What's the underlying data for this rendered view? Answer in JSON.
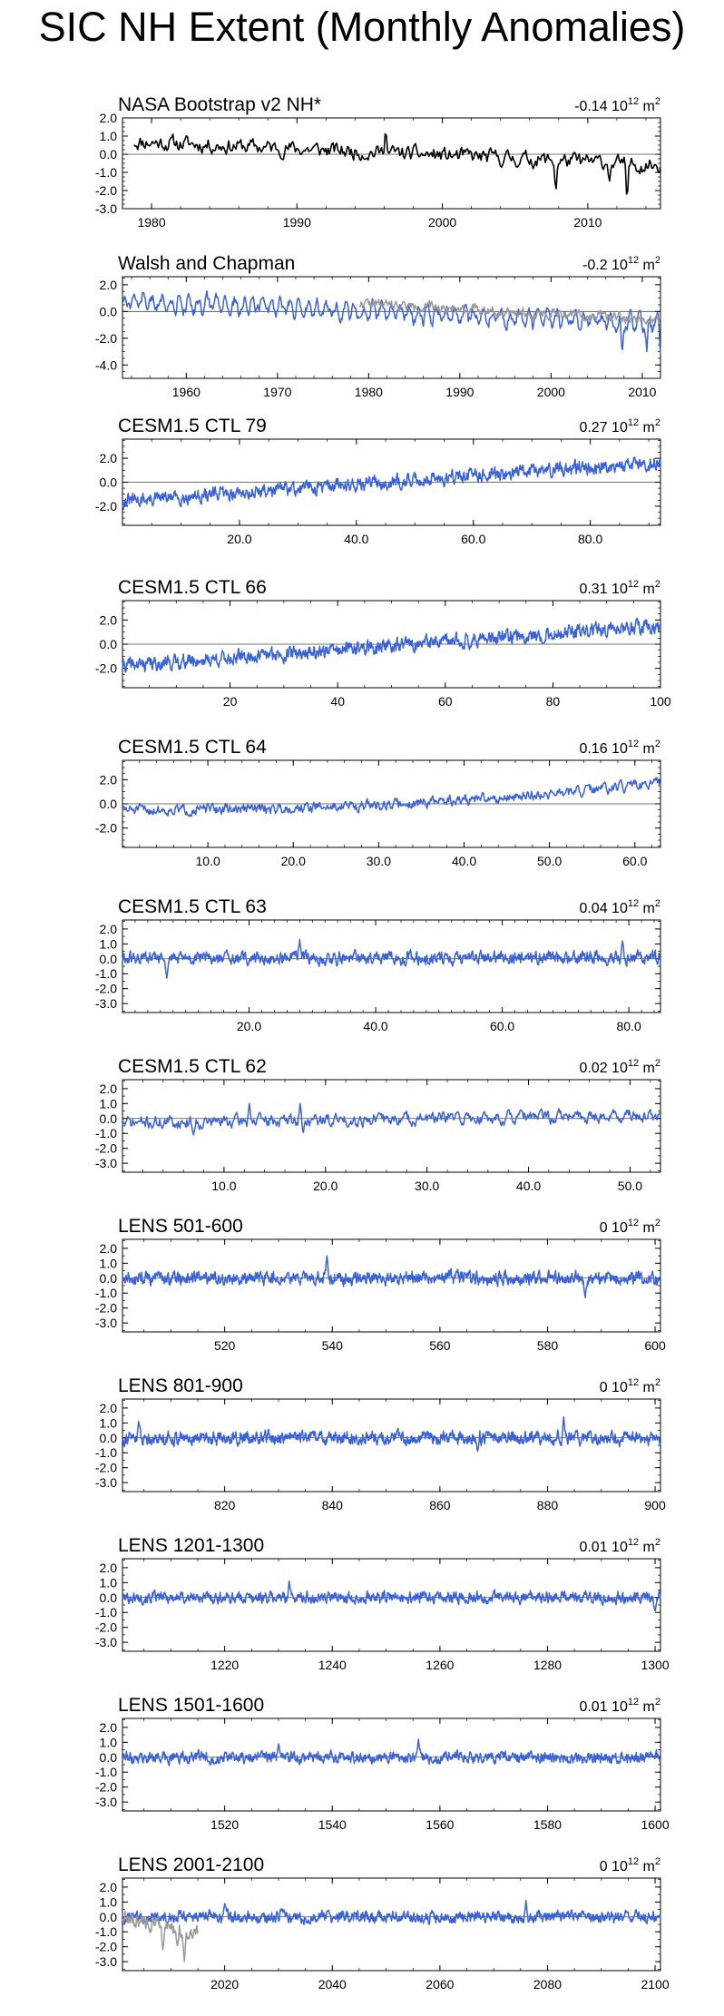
{
  "title": "SIC NH Extent (Monthly Anomalies)",
  "colors": {
    "model": "#3B63D8",
    "obs": "#000000",
    "obs_overlay": "#999999",
    "axis": "#000000"
  },
  "chart_data": [
    {
      "type": "line",
      "title": "NASA Bootstrap v2 NH*",
      "value": "-0.14",
      "unit_base": "10",
      "unit_exp": "12",
      "unit_suffix": " m",
      "unit_exp2": "2",
      "xlim": [
        1978,
        2015
      ],
      "ylim": [
        -3.0,
        2.0
      ],
      "yticks": [
        "2.0",
        "1.0",
        "0.0",
        "-1.0",
        "-2.0",
        "-3.0"
      ],
      "ytick_values": [
        2,
        1,
        0,
        -1,
        -2,
        -3
      ],
      "xticks": [
        "1980",
        "1990",
        "2000",
        "2010"
      ],
      "xtick_values": [
        1980,
        1990,
        2000,
        2010
      ],
      "series": [
        {
          "style": "obs",
          "x_start": 1978.8,
          "x_end": 2015,
          "trend": [
            0.7,
            -0.6
          ],
          "noise": 0.35,
          "seed": 11,
          "spikes": [
            [
              1996.1,
              1.6
            ],
            [
              2007.8,
              -2.2
            ],
            [
              2012.7,
              -2.9
            ],
            [
              2011.5,
              -1.5
            ]
          ]
        }
      ]
    },
    {
      "type": "line",
      "title": "Walsh and Chapman",
      "value": "-0.2",
      "unit_base": "10",
      "unit_exp": "12",
      "unit_suffix": " m",
      "unit_exp2": "2",
      "xlim": [
        1953,
        2012
      ],
      "ylim": [
        -5.0,
        2.6
      ],
      "yticks": [
        "2.0",
        "0.0",
        "-2.0",
        "-4.0"
      ],
      "ytick_values": [
        2,
        0,
        -2,
        -4
      ],
      "xticks": [
        "1960",
        "1970",
        "1980",
        "1990",
        "2000",
        "2010"
      ],
      "xtick_values": [
        1960,
        1970,
        1980,
        1990,
        2000,
        2010
      ],
      "series": [
        {
          "style": "model",
          "x_start": 1953,
          "x_end": 2012,
          "trend": [
            0.8,
            -0.9
          ],
          "noise": 0.35,
          "seasonal": 1.0,
          "seed": 21,
          "spikes": [
            [
              2007.8,
              -3.2
            ],
            [
              2010.5,
              -3.0
            ],
            [
              2012,
              -3.3
            ]
          ]
        },
        {
          "style": "obs_overlay",
          "x_start": 1979,
          "x_end": 2012,
          "trend": [
            0.6,
            -0.6
          ],
          "noise": 0.3,
          "seed": 22
        }
      ]
    },
    {
      "type": "line",
      "title": "CESM1.5 CTL 79",
      "value": "0.27",
      "unit_base": "10",
      "unit_exp": "12",
      "unit_suffix": " m",
      "unit_exp2": "2",
      "xlim": [
        0,
        92
      ],
      "ylim": [
        -3.6,
        3.6
      ],
      "yticks": [
        "2.0",
        "0.0",
        "-2.0"
      ],
      "ytick_values": [
        2,
        0,
        -2
      ],
      "xticks": [
        "20.0",
        "40.0",
        "60.0",
        "80.0"
      ],
      "xtick_values": [
        20,
        40,
        60,
        80
      ],
      "series": [
        {
          "style": "model",
          "x_start": 0,
          "x_end": 92,
          "trend": [
            -1.6,
            1.7
          ],
          "noise": 0.45,
          "seed": 31
        }
      ]
    },
    {
      "type": "line",
      "title": "CESM1.5 CTL 66",
      "value": "0.31",
      "unit_base": "10",
      "unit_exp": "12",
      "unit_suffix": " m",
      "unit_exp2": "2",
      "xlim": [
        0,
        100
      ],
      "ylim": [
        -3.6,
        3.6
      ],
      "yticks": [
        "2.0",
        "0.0",
        "-2.0"
      ],
      "ytick_values": [
        2,
        0,
        -2
      ],
      "xticks": [
        "20",
        "40",
        "60",
        "80",
        "100"
      ],
      "xtick_values": [
        20,
        40,
        60,
        80,
        100
      ],
      "series": [
        {
          "style": "model",
          "x_start": 0,
          "x_end": 100,
          "trend": [
            -1.8,
            1.5
          ],
          "noise": 0.45,
          "seed": 41
        }
      ]
    },
    {
      "type": "line",
      "title": "CESM1.5 CTL 64",
      "value": "0.16",
      "unit_base": "10",
      "unit_exp": "12",
      "unit_suffix": " m",
      "unit_exp2": "2",
      "xlim": [
        0,
        63
      ],
      "ylim": [
        -3.6,
        3.6
      ],
      "yticks": [
        "2.0",
        "0.0",
        "-2.0"
      ],
      "ytick_values": [
        2,
        0,
        -2
      ],
      "xticks": [
        "10.0",
        "20.0",
        "30.0",
        "40.0",
        "50.0",
        "60.0"
      ],
      "xtick_values": [
        10,
        20,
        30,
        40,
        50,
        60
      ],
      "series": [
        {
          "style": "model",
          "x_start": 0,
          "x_end": 63,
          "trend": [
            -0.5,
            1.7
          ],
          "noise": 0.35,
          "seed": 51,
          "curve": 2.2
        }
      ]
    },
    {
      "type": "line",
      "title": "CESM1.5 CTL 63",
      "value": "0.04",
      "unit_base": "10",
      "unit_exp": "12",
      "unit_suffix": " m",
      "unit_exp2": "2",
      "xlim": [
        0,
        85
      ],
      "ylim": [
        -3.6,
        2.6
      ],
      "yticks": [
        "2.0",
        "1.0",
        "0.0",
        "-1.0",
        "-2.0",
        "-3.0"
      ],
      "ytick_values": [
        2,
        1,
        0,
        -1,
        -2,
        -3
      ],
      "xticks": [
        "20.0",
        "40.0",
        "60.0",
        "80.0"
      ],
      "xtick_values": [
        20,
        40,
        60,
        80
      ],
      "series": [
        {
          "style": "model",
          "x_start": 0,
          "x_end": 85,
          "trend": [
            0.0,
            0.1
          ],
          "noise": 0.35,
          "seed": 61,
          "spikes": [
            [
              28,
              1.3
            ],
            [
              7,
              -1.3
            ],
            [
              79,
              1.2
            ]
          ]
        }
      ]
    },
    {
      "type": "line",
      "title": "CESM1.5 CTL 62",
      "value": "0.02",
      "unit_base": "10",
      "unit_exp": "12",
      "unit_suffix": " m",
      "unit_exp2": "2",
      "xlim": [
        0,
        53
      ],
      "ylim": [
        -3.6,
        2.6
      ],
      "yticks": [
        "2.0",
        "1.0",
        "0.0",
        "-1.0",
        "-2.0",
        "-3.0"
      ],
      "ytick_values": [
        2,
        1,
        0,
        -1,
        -2,
        -3
      ],
      "xticks": [
        "10.0",
        "20.0",
        "30.0",
        "40.0",
        "50.0"
      ],
      "xtick_values": [
        10,
        20,
        30,
        40,
        50
      ],
      "series": [
        {
          "style": "model",
          "x_start": 0,
          "x_end": 53,
          "trend": [
            -0.3,
            0.2
          ],
          "noise": 0.35,
          "seed": 71,
          "spikes": [
            [
              12.5,
              1.0
            ],
            [
              17.5,
              1.0
            ],
            [
              7,
              -1.1
            ],
            [
              17.8,
              -1.1
            ]
          ]
        }
      ]
    },
    {
      "type": "line",
      "title": "LENS 501-600",
      "value": "0",
      "unit_base": "10",
      "unit_exp": "12",
      "unit_suffix": " m",
      "unit_exp2": "2",
      "xlim": [
        501,
        601
      ],
      "ylim": [
        -3.6,
        2.6
      ],
      "yticks": [
        "2.0",
        "1.0",
        "0.0",
        "-1.0",
        "-2.0",
        "-3.0"
      ],
      "ytick_values": [
        2,
        1,
        0,
        -1,
        -2,
        -3
      ],
      "xticks": [
        "520",
        "540",
        "560",
        "580",
        "600"
      ],
      "xtick_values": [
        520,
        540,
        560,
        580,
        600
      ],
      "series": [
        {
          "style": "model",
          "x_start": 501,
          "x_end": 601,
          "trend": [
            0,
            0
          ],
          "noise": 0.35,
          "seed": 81,
          "spikes": [
            [
              539,
              1.5
            ],
            [
              587,
              -1.3
            ]
          ]
        }
      ]
    },
    {
      "type": "line",
      "title": "LENS 801-900",
      "value": "0",
      "unit_base": "10",
      "unit_exp": "12",
      "unit_suffix": " m",
      "unit_exp2": "2",
      "xlim": [
        801,
        901
      ],
      "ylim": [
        -3.6,
        2.6
      ],
      "yticks": [
        "2.0",
        "1.0",
        "0.0",
        "-1.0",
        "-2.0",
        "-3.0"
      ],
      "ytick_values": [
        2,
        1,
        0,
        -1,
        -2,
        -3
      ],
      "xticks": [
        "820",
        "840",
        "860",
        "880",
        "900"
      ],
      "xtick_values": [
        820,
        840,
        860,
        880,
        900
      ],
      "series": [
        {
          "style": "model",
          "x_start": 801,
          "x_end": 901,
          "trend": [
            0,
            0
          ],
          "noise": 0.35,
          "seed": 91,
          "spikes": [
            [
              804,
              1.1
            ],
            [
              883,
              1.4
            ],
            [
              867,
              -0.9
            ]
          ]
        }
      ]
    },
    {
      "type": "line",
      "title": "LENS 1201-1300",
      "value": "0.01",
      "unit_base": "10",
      "unit_exp": "12",
      "unit_suffix": " m",
      "unit_exp2": "2",
      "xlim": [
        1201,
        1301
      ],
      "ylim": [
        -3.6,
        2.6
      ],
      "yticks": [
        "2.0",
        "1.0",
        "0.0",
        "-1.0",
        "-2.0",
        "-3.0"
      ],
      "ytick_values": [
        2,
        1,
        0,
        -1,
        -2,
        -3
      ],
      "xticks": [
        "1220",
        "1240",
        "1260",
        "1280",
        "1300"
      ],
      "xtick_values": [
        1220,
        1240,
        1260,
        1280,
        1300
      ],
      "series": [
        {
          "style": "model",
          "x_start": 1201,
          "x_end": 1301,
          "trend": [
            0,
            0
          ],
          "noise": 0.3,
          "seed": 101,
          "spikes": [
            [
              1232,
              1.1
            ],
            [
              1300,
              -0.9
            ]
          ]
        }
      ]
    },
    {
      "type": "line",
      "title": "LENS 1501-1600",
      "value": "0.01",
      "unit_base": "10",
      "unit_exp": "12",
      "unit_suffix": " m",
      "unit_exp2": "2",
      "xlim": [
        1501,
        1601
      ],
      "ylim": [
        -3.6,
        2.6
      ],
      "yticks": [
        "2.0",
        "1.0",
        "0.0",
        "-1.0",
        "-2.0",
        "-3.0"
      ],
      "ytick_values": [
        2,
        1,
        0,
        -1,
        -2,
        -3
      ],
      "xticks": [
        "1520",
        "1540",
        "1560",
        "1580",
        "1600"
      ],
      "xtick_values": [
        1520,
        1540,
        1560,
        1580,
        1600
      ],
      "series": [
        {
          "style": "model",
          "x_start": 1501,
          "x_end": 1601,
          "trend": [
            0,
            0
          ],
          "noise": 0.3,
          "seed": 111,
          "spikes": [
            [
              1556,
              1.2
            ],
            [
              1530,
              0.9
            ]
          ]
        }
      ]
    },
    {
      "type": "line",
      "title": "LENS 2001-2100",
      "value": "0",
      "unit_base": "10",
      "unit_exp": "12",
      "unit_suffix": " m",
      "unit_exp2": "2",
      "xlim": [
        2001,
        2101
      ],
      "ylim": [
        -3.6,
        2.6
      ],
      "yticks": [
        "2.0",
        "1.0",
        "0.0",
        "-1.0",
        "-2.0",
        "-3.0"
      ],
      "ytick_values": [
        2,
        1,
        0,
        -1,
        -2,
        -3
      ],
      "xticks": [
        "2020",
        "2040",
        "2060",
        "2080",
        "2100"
      ],
      "xtick_values": [
        2020,
        2040,
        2060,
        2080,
        2100
      ],
      "series": [
        {
          "style": "model",
          "x_start": 2001,
          "x_end": 2101,
          "trend": [
            0,
            0
          ],
          "noise": 0.3,
          "seed": 121,
          "spikes": [
            [
              2076,
              1.1
            ],
            [
              2020,
              0.9
            ]
          ]
        },
        {
          "style": "obs_overlay",
          "x_start": 2001,
          "x_end": 2015,
          "trend": [
            0.0,
            -1.2
          ],
          "noise": 0.35,
          "seed": 122,
          "spikes": [
            [
              2012.5,
              -3.0
            ],
            [
              2008.5,
              -2.2
            ],
            [
              2011.2,
              -2.0
            ]
          ]
        }
      ]
    }
  ]
}
